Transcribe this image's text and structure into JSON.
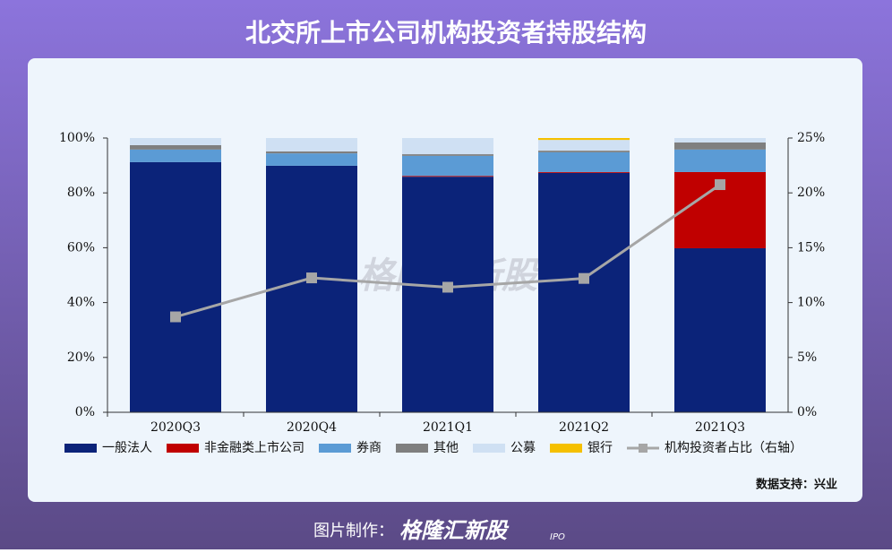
{
  "chart_data": {
    "type": "bar",
    "stacked": true,
    "title": "北交所上市公司机构投资者持股结构",
    "categories": [
      "2020Q3",
      "2020Q4",
      "2021Q1",
      "2021Q2",
      "2021Q3"
    ],
    "series": [
      {
        "name": "一般法人",
        "color": "#0b2379",
        "values": [
          91.2,
          89.9,
          85.9,
          87.3,
          59.8
        ]
      },
      {
        "name": "非金融类上市公司",
        "color": "#c00000",
        "values": [
          0,
          0,
          0.3,
          0.3,
          27.8
        ]
      },
      {
        "name": "券商",
        "color": "#5b9bd5",
        "values": [
          4.6,
          4.5,
          7.3,
          7.2,
          8.2
        ]
      },
      {
        "name": "其他",
        "color": "#7f7f7f",
        "values": [
          1.6,
          0.7,
          0.6,
          0.6,
          2.6
        ]
      },
      {
        "name": "公募",
        "color": "#cfe0f3",
        "values": [
          2.6,
          4.9,
          5.9,
          3.9,
          1.6
        ]
      },
      {
        "name": "银行",
        "color": "#f5c000",
        "values": [
          0,
          0,
          0,
          0.7,
          0
        ]
      },
      {
        "name": "机构投资者占比（右轴）",
        "color": "#a6a6a6",
        "type": "line",
        "axis": "y2",
        "values": [
          8.7,
          12.25,
          11.4,
          12.2,
          20.75
        ]
      }
    ],
    "ylim": [
      0,
      100
    ],
    "yticks": [
      {
        "value": 0,
        "label": "0%"
      },
      {
        "value": 20,
        "label": "20%"
      },
      {
        "value": 40,
        "label": "40%"
      },
      {
        "value": 60,
        "label": "60%"
      },
      {
        "value": 80,
        "label": "80%"
      },
      {
        "value": 100,
        "label": "100%"
      }
    ],
    "y2lim": [
      0,
      25
    ],
    "y2ticks": [
      {
        "value": 0,
        "label": "0%"
      },
      {
        "value": 5,
        "label": "5%"
      },
      {
        "value": 10,
        "label": "10%"
      },
      {
        "value": 15,
        "label": "15%"
      },
      {
        "value": 20,
        "label": "20%"
      },
      {
        "value": 25,
        "label": "25%"
      }
    ],
    "source": "数据支持：兴业",
    "watermark": "格隆汇新股",
    "footer_label": "图片制作：",
    "footer_brand": "格隆汇新股",
    "footer_brand_tag": "IPO"
  }
}
